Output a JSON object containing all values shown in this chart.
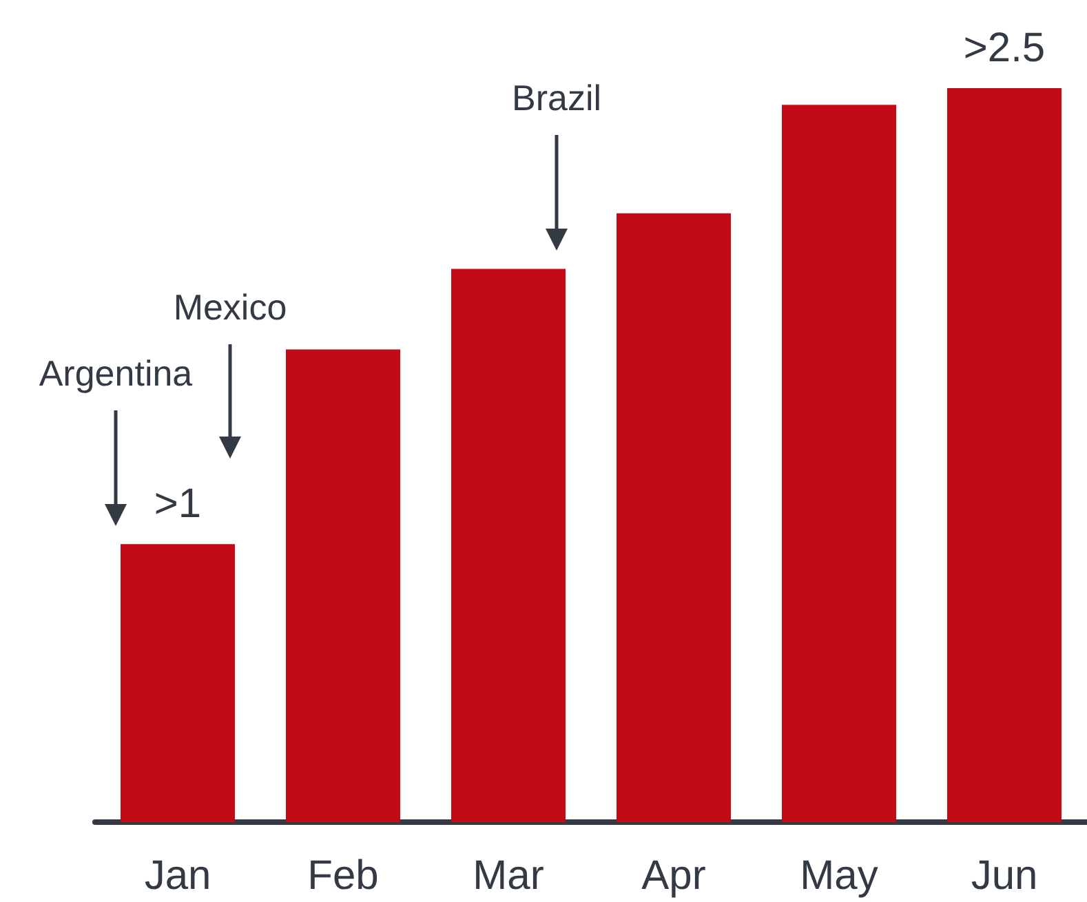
{
  "chart_data": {
    "type": "bar",
    "categories": [
      "Jan",
      "Feb",
      "Mar",
      "Apr",
      "May",
      "Jun"
    ],
    "values": [
      1.0,
      1.7,
      1.99,
      2.19,
      2.58,
      2.64
    ],
    "value_labels": [
      ">1",
      null,
      null,
      null,
      null,
      ">2.5"
    ],
    "color": "#c20b16",
    "annotations": [
      "Argentina",
      "Mexico",
      "Brazil"
    ]
  }
}
